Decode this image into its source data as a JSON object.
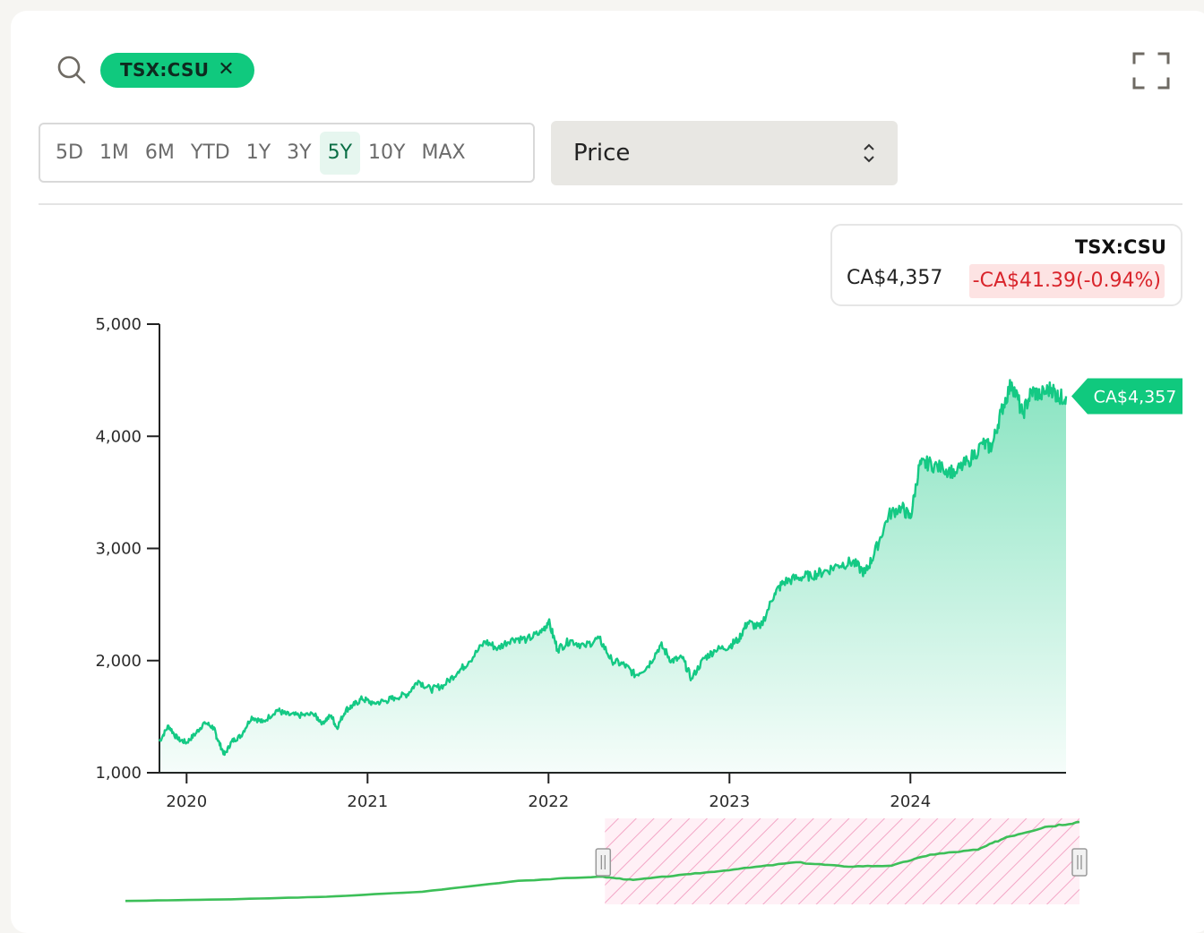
{
  "search": {
    "ticker": "TSX:CSU"
  },
  "ranges": [
    "5D",
    "1M",
    "6M",
    "YTD",
    "1Y",
    "3Y",
    "5Y",
    "10Y",
    "MAX"
  ],
  "active_range": "5Y",
  "metric": {
    "selected": "Price"
  },
  "quote": {
    "symbol": "TSX:CSU",
    "price": "CA$4,357",
    "change": "-CA$41.39(-0.94%)"
  },
  "colors": {
    "accent": "#10c97e",
    "line": "#14c984",
    "negative": "#d9242b",
    "navigator_line": "#3cbf58",
    "navigator_band": "#f3a6c6"
  },
  "chart_data": {
    "type": "area",
    "y_ticks": [
      "1,000",
      "2,000",
      "3,000",
      "4,000",
      "5,000"
    ],
    "x_ticks": [
      "2020",
      "2021",
      "2022",
      "2023",
      "2024"
    ],
    "ylim": [
      1000,
      5000
    ],
    "xlim": [
      2019.85,
      2024.86
    ],
    "last_value_label": "CA$4,357",
    "series": [
      {
        "values_xy": [
          [
            2019.85,
            1280
          ],
          [
            2019.9,
            1420
          ],
          [
            2019.95,
            1300
          ],
          [
            2020.0,
            1270
          ],
          [
            2020.05,
            1350
          ],
          [
            2020.1,
            1450
          ],
          [
            2020.15,
            1400
          ],
          [
            2020.17,
            1300
          ],
          [
            2020.21,
            1160
          ],
          [
            2020.25,
            1280
          ],
          [
            2020.3,
            1330
          ],
          [
            2020.36,
            1500
          ],
          [
            2020.42,
            1450
          ],
          [
            2020.5,
            1560
          ],
          [
            2020.55,
            1520
          ],
          [
            2020.62,
            1510
          ],
          [
            2020.7,
            1520
          ],
          [
            2020.75,
            1450
          ],
          [
            2020.8,
            1510
          ],
          [
            2020.83,
            1400
          ],
          [
            2020.88,
            1560
          ],
          [
            2020.92,
            1600
          ],
          [
            2020.97,
            1660
          ],
          [
            2021.03,
            1620
          ],
          [
            2021.1,
            1640
          ],
          [
            2021.15,
            1670
          ],
          [
            2021.22,
            1700
          ],
          [
            2021.28,
            1820
          ],
          [
            2021.35,
            1740
          ],
          [
            2021.42,
            1780
          ],
          [
            2021.5,
            1900
          ],
          [
            2021.56,
            1990
          ],
          [
            2021.65,
            2170
          ],
          [
            2021.72,
            2110
          ],
          [
            2021.8,
            2200
          ],
          [
            2021.88,
            2190
          ],
          [
            2021.96,
            2250
          ],
          [
            2022.0,
            2350
          ],
          [
            2022.05,
            2100
          ],
          [
            2022.12,
            2180
          ],
          [
            2022.2,
            2130
          ],
          [
            2022.28,
            2200
          ],
          [
            2022.35,
            2000
          ],
          [
            2022.42,
            1960
          ],
          [
            2022.48,
            1870
          ],
          [
            2022.55,
            1950
          ],
          [
            2022.62,
            2140
          ],
          [
            2022.68,
            2000
          ],
          [
            2022.74,
            2020
          ],
          [
            2022.79,
            1840
          ],
          [
            2022.86,
            2020
          ],
          [
            2022.92,
            2090
          ],
          [
            2023.0,
            2130
          ],
          [
            2023.05,
            2190
          ],
          [
            2023.1,
            2340
          ],
          [
            2023.17,
            2290
          ],
          [
            2023.25,
            2600
          ],
          [
            2023.3,
            2700
          ],
          [
            2023.38,
            2740
          ],
          [
            2023.45,
            2760
          ],
          [
            2023.52,
            2790
          ],
          [
            2023.6,
            2850
          ],
          [
            2023.68,
            2880
          ],
          [
            2023.75,
            2780
          ],
          [
            2023.8,
            2950
          ],
          [
            2023.88,
            3300
          ],
          [
            2023.95,
            3370
          ],
          [
            2024.0,
            3270
          ],
          [
            2024.05,
            3740
          ],
          [
            2024.1,
            3760
          ],
          [
            2024.18,
            3710
          ],
          [
            2024.25,
            3680
          ],
          [
            2024.32,
            3780
          ],
          [
            2024.4,
            3930
          ],
          [
            2024.45,
            3900
          ],
          [
            2024.5,
            4220
          ],
          [
            2024.56,
            4480
          ],
          [
            2024.62,
            4200
          ],
          [
            2024.67,
            4400
          ],
          [
            2024.72,
            4370
          ],
          [
            2024.78,
            4430
          ],
          [
            2024.82,
            4340
          ],
          [
            2024.86,
            4357
          ]
        ]
      }
    ],
    "navigator": {
      "values_xy": [
        [
          2014.9,
          0.04
        ],
        [
          2016.0,
          0.06
        ],
        [
          2017.0,
          0.09
        ],
        [
          2018.0,
          0.15
        ],
        [
          2019.0,
          0.28
        ],
        [
          2019.85,
          0.33
        ],
        [
          2020.2,
          0.29
        ],
        [
          2020.8,
          0.36
        ],
        [
          2021.3,
          0.42
        ],
        [
          2021.9,
          0.5
        ],
        [
          2022.4,
          0.45
        ],
        [
          2022.9,
          0.46
        ],
        [
          2023.3,
          0.59
        ],
        [
          2023.8,
          0.65
        ],
        [
          2024.1,
          0.8
        ],
        [
          2024.5,
          0.92
        ],
        [
          2024.86,
          0.98
        ]
      ],
      "selection": [
        2019.85,
        2024.86
      ]
    }
  }
}
